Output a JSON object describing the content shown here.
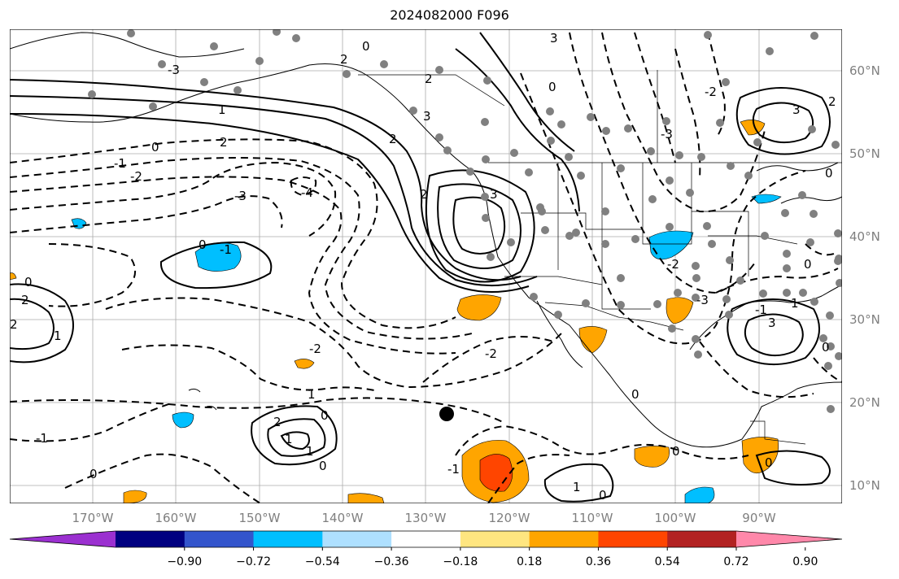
{
  "title": "2024082000 F096",
  "map": {
    "projection": "Mercator",
    "lon_range_deg": [
      -180,
      -80
    ],
    "lat_range_deg": [
      8,
      65
    ],
    "lon_labels": [
      "170°W",
      "160°W",
      "150°W",
      "140°W",
      "130°W",
      "120°W",
      "110°W",
      "100°W",
      "90°W"
    ],
    "lat_labels": [
      "60°N",
      "50°N",
      "40°N",
      "30°N",
      "20°N",
      "10°N"
    ],
    "gridlines": true,
    "features": [
      "coastlines",
      "country-borders",
      "us-state-borders"
    ],
    "contour_line_labels": [
      "0",
      "1",
      "-1",
      "2",
      "-2",
      "3",
      "-3",
      "-4"
    ],
    "contour_style": "solid positive, dashed negative",
    "station_marker_color": "#808080",
    "center_marker_color": "#000000"
  },
  "colorbar": {
    "ticks": [
      "−0.90",
      "−0.72",
      "−0.54",
      "−0.36",
      "−0.18",
      "0.18",
      "0.36",
      "0.54",
      "0.72",
      "0.90"
    ],
    "colors": [
      "#9b30d0",
      "#000080",
      "#3355cc",
      "#00bfff",
      "#aee0ff",
      "#ffffff",
      "#ffe680",
      "#ffa500",
      "#ff4500",
      "#b22222",
      "#ff88aa"
    ],
    "extend": "both"
  }
}
